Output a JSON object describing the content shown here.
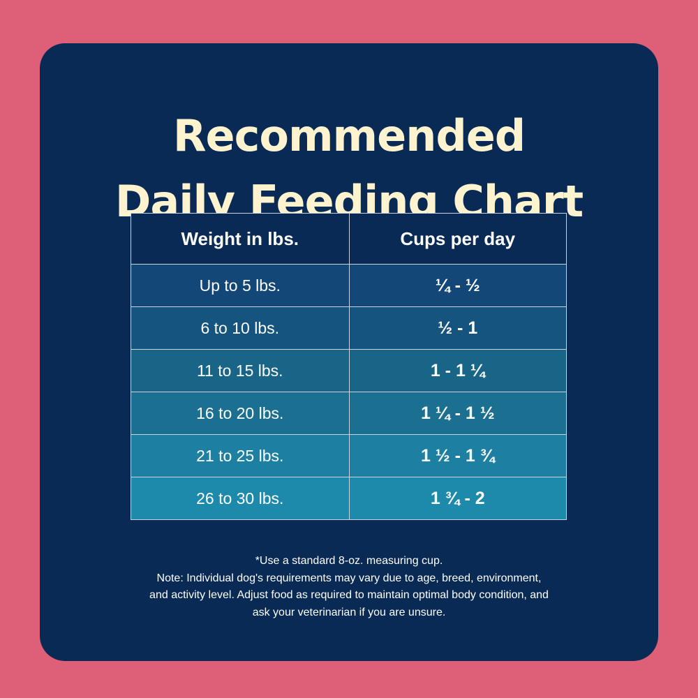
{
  "title": {
    "line1": "Recommended",
    "line2": "Daily Feeding Chart"
  },
  "table": {
    "headers": [
      "Weight in lbs.",
      "Cups per day"
    ],
    "rows": [
      {
        "weight": "Up to 5 lbs.",
        "cups": "¼ - ½",
        "color": "#134777"
      },
      {
        "weight": "6 to 10 lbs.",
        "cups": "½ - 1",
        "color": "#15547f"
      },
      {
        "weight": "11 to 15 lbs.",
        "cups": "1 - 1 ¼",
        "color": "#196587"
      },
      {
        "weight": "16 to 20 lbs.",
        "cups": "1 ¼ - 1 ½",
        "color": "#1b7091"
      },
      {
        "weight": "21 to 25 lbs.",
        "cups": "1 ½ - 1 ¾",
        "color": "#1d80a2"
      },
      {
        "weight": "26 to 30 lbs.",
        "cups": "1 ¾ - 2",
        "color": "#1e8aab"
      }
    ]
  },
  "notes": {
    "line1": "*Use a standard 8-oz. measuring cup.",
    "line2": "Note: Individual dog's requirements may vary due to age, breed, environment,",
    "line3": "and activity level. Adjust food as required to maintain optimal body condition, and",
    "line4": "ask your veterinarian if you are unsure."
  },
  "colors": {
    "background": "#de5f78",
    "card": "#082a55",
    "title": "#fdf3cf"
  }
}
